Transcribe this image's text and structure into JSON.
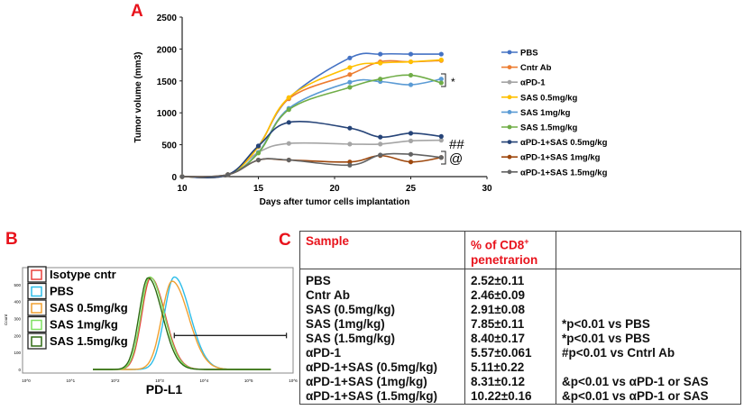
{
  "panel_labels": {
    "a": "A",
    "b": "B",
    "c": "C"
  },
  "chart_data": [
    {
      "type": "line",
      "panel": "A",
      "xlabel": "Days after tumor cells implantation",
      "ylabel": "Tumor volume (mm3)",
      "xlim": [
        10,
        30
      ],
      "ylim": [
        0,
        2500
      ],
      "xticks": [
        10,
        15,
        20,
        25,
        30
      ],
      "yticks": [
        0,
        500,
        1000,
        1500,
        2000,
        2500
      ],
      "x": [
        10,
        13,
        15,
        17,
        21,
        23,
        25,
        27
      ],
      "legend_position": "right",
      "series": [
        {
          "name": "PBS",
          "color": "#4472c4",
          "values": [
            0,
            30,
            480,
            1230,
            1860,
            1920,
            1920,
            1920
          ]
        },
        {
          "name": "Cntr Ab",
          "color": "#ed7d31",
          "values": [
            0,
            30,
            470,
            1220,
            1600,
            1800,
            1800,
            1820
          ]
        },
        {
          "name": "αPD-1",
          "color": "#a5a5a5",
          "values": [
            0,
            30,
            380,
            520,
            510,
            510,
            560,
            570
          ]
        },
        {
          "name": "SAS 0.5mg/kg",
          "color": "#ffc000",
          "values": [
            0,
            30,
            470,
            1240,
            1710,
            1780,
            1800,
            1830
          ]
        },
        {
          "name": "SAS 1mg/kg",
          "color": "#5b9bd5",
          "values": [
            0,
            30,
            380,
            1070,
            1480,
            1490,
            1440,
            1530
          ]
        },
        {
          "name": "SAS 1.5mg/kg",
          "color": "#70ad47",
          "values": [
            0,
            30,
            370,
            1050,
            1400,
            1530,
            1590,
            1470
          ]
        },
        {
          "name": "αPD-1+SAS 0.5mg/kg",
          "color": "#264478",
          "values": [
            0,
            30,
            480,
            850,
            760,
            620,
            680,
            630
          ]
        },
        {
          "name": "αPD-1+SAS 1mg/kg",
          "color": "#9e480e",
          "values": [
            0,
            30,
            260,
            260,
            230,
            330,
            230,
            300
          ]
        },
        {
          "name": "αPD-1+SAS 1.5mg/kg",
          "color": "#636363",
          "values": [
            0,
            30,
            260,
            260,
            180,
            340,
            350,
            300
          ]
        }
      ],
      "annotations": [
        {
          "text": "*",
          "at_value": 1500
        },
        {
          "text": "##",
          "at_value": 600
        },
        {
          "text": "@",
          "at_value": 300
        }
      ]
    },
    {
      "type": "histogram",
      "panel": "B",
      "xlabel": "PD-L1",
      "ylabel": "Count",
      "x_scale": "log",
      "xticks": [
        "10^0",
        "10^1",
        "10^2",
        "10^3",
        "10^4",
        "10^5",
        "10^6"
      ],
      "yticks": [
        0,
        100,
        200,
        300,
        400,
        500
      ],
      "ylim": [
        0,
        600
      ],
      "gate": {
        "from_log10": 3.33,
        "to_log10": 5.85,
        "count": 200
      },
      "series": [
        {
          "name": "Isotype cntr",
          "color": "#e8403c",
          "peak_log10": 2.8,
          "peak_count": 540,
          "width": 0.2
        },
        {
          "name": "PBS",
          "color": "#2ebde8",
          "peak_log10": 3.33,
          "peak_count": 545,
          "width": 0.22
        },
        {
          "name": "SAS 0.5mg/kg",
          "color": "#f0a030",
          "peak_log10": 3.28,
          "peak_count": 520,
          "width": 0.23
        },
        {
          "name": "SAS 1mg/kg",
          "color": "#7de060",
          "peak_log10": 2.78,
          "peak_count": 545,
          "width": 0.2
        },
        {
          "name": "SAS 1.5mg/kg",
          "color": "#2e6a12",
          "peak_log10": 2.74,
          "peak_count": 540,
          "width": 0.2
        }
      ]
    }
  ],
  "table": {
    "headers": {
      "sample": "Sample",
      "pct_main": "% of CD8",
      "pct_sup": "+",
      "pct_line2": "penetrarion",
      "note": ""
    },
    "rows": [
      {
        "sample": "PBS",
        "value": "2.52±0.11",
        "note": ""
      },
      {
        "sample": "Cntr Ab",
        "value": "2.46±0.09",
        "note": ""
      },
      {
        "sample": "SAS (0.5mg/kg)",
        "value": "2.91±0.08",
        "note": ""
      },
      {
        "sample": "SAS (1mg/kg)",
        "value": "7.85±0.11",
        "note": "*p<0.01 vs PBS"
      },
      {
        "sample": "SAS (1.5mg/kg)",
        "value": "8.40±0.17",
        "note": "*p<0.01 vs PBS"
      },
      {
        "sample": "αPD-1",
        "value": "5.57±0.061",
        "note": "#p<0.01 vs Cntrl Ab"
      },
      {
        "sample": "αPD-1+SAS (0.5mg/kg)",
        "value": "5.11±0.22",
        "note": ""
      },
      {
        "sample": "αPD-1+SAS (1mg/kg)",
        "value": "8.31±0.12",
        "note": "&p<0.01 vs αPD-1 or SAS"
      },
      {
        "sample": "αPD-1+SAS (1.5mg/kg)",
        "value": "10.22±0.16",
        "note": "&p<0.01 vs αPD-1 or SAS"
      }
    ]
  }
}
